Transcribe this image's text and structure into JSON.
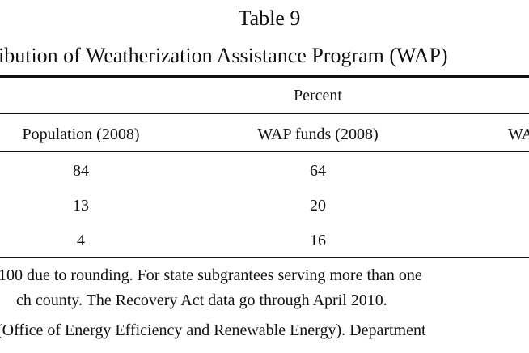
{
  "header": {
    "table_number": "Table 9",
    "title": "ibution of Weatherization Assistance Program (WAP)"
  },
  "table": {
    "group_header": "Percent",
    "columns": [
      "Population (2008)",
      "WAP funds (2008)",
      "WA"
    ],
    "rows": [
      [
        84,
        64
      ],
      [
        13,
        20
      ],
      [
        4,
        16
      ]
    ]
  },
  "notes": [
    "100 due to rounding.  For state subgrantees serving more than one",
    "ch county.  The Recovery Act data go through April 2010.",
    "(Office of Energy Efficiency and Renewable Energy).  Department"
  ]
}
